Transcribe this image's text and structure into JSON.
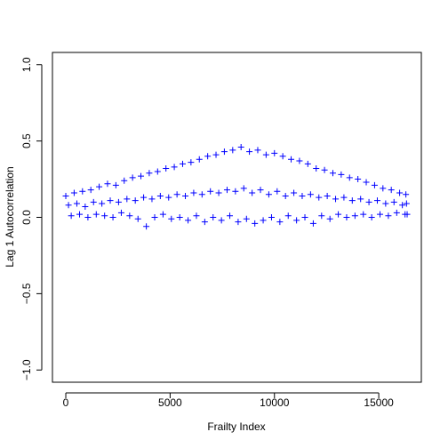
{
  "chart_data": {
    "type": "scatter",
    "xlabel": "Frailty Index",
    "ylabel": "Lag 1 Autocorrelation",
    "color": "#0000ff",
    "xlim": [
      -640,
      17040
    ],
    "ylim": [
      -1.08,
      1.08
    ],
    "xticks": [
      0,
      5000,
      10000,
      15000
    ],
    "yticks": [
      {
        "value": -1.0,
        "label": "−1.0"
      },
      {
        "value": -0.5,
        "label": "−0.5"
      },
      {
        "value": 0.0,
        "label": "0.0"
      },
      0.5,
      {
        "value": 1.0,
        "label": "1.0"
      }
    ],
    "x": [
      0,
      130,
      260,
      400,
      530,
      660,
      800,
      930,
      1060,
      1200,
      1330,
      1460,
      1600,
      1730,
      1860,
      2000,
      2130,
      2260,
      2400,
      2530,
      2660,
      2800,
      2930,
      3060,
      3200,
      3330,
      3460,
      3600,
      3730,
      3860,
      4000,
      4130,
      4260,
      4400,
      4530,
      4660,
      4800,
      4930,
      5060,
      5200,
      5330,
      5460,
      5600,
      5730,
      5860,
      6000,
      6130,
      6260,
      6400,
      6530,
      6660,
      6800,
      6930,
      7060,
      7200,
      7330,
      7460,
      7600,
      7730,
      7860,
      8000,
      8130,
      8260,
      8400,
      8530,
      8660,
      8800,
      8930,
      9060,
      9200,
      9330,
      9460,
      9600,
      9730,
      9860,
      10000,
      10130,
      10260,
      10400,
      10530,
      10660,
      10800,
      10930,
      11060,
      11200,
      11330,
      11460,
      11600,
      11730,
      11860,
      12000,
      12130,
      12260,
      12400,
      12530,
      12660,
      12800,
      12930,
      13060,
      13200,
      13330,
      13460,
      13600,
      13730,
      13860,
      14000,
      14130,
      14260,
      14400,
      14530,
      14660,
      14800,
      14930,
      15060,
      15200,
      15330,
      15460,
      15600,
      15730,
      15860,
      16000,
      16130,
      16260,
      16300,
      16330,
      16360
    ],
    "values": [
      0.14,
      0.08,
      0.01,
      0.16,
      0.09,
      0.02,
      0.17,
      0.07,
      0.0,
      0.18,
      0.1,
      0.02,
      0.2,
      0.09,
      0.01,
      0.22,
      0.11,
      0.0,
      0.21,
      0.1,
      0.03,
      0.24,
      0.12,
      0.01,
      0.26,
      0.11,
      -0.01,
      0.27,
      0.13,
      -0.06,
      0.29,
      0.12,
      0.0,
      0.3,
      0.14,
      0.02,
      0.32,
      0.13,
      -0.01,
      0.33,
      0.15,
      0.0,
      0.35,
      0.14,
      -0.02,
      0.36,
      0.16,
      0.01,
      0.38,
      0.15,
      -0.03,
      0.4,
      0.17,
      0.0,
      0.41,
      0.16,
      -0.02,
      0.43,
      0.18,
      0.01,
      0.44,
      0.17,
      -0.03,
      0.46,
      0.19,
      -0.01,
      0.43,
      0.16,
      -0.04,
      0.44,
      0.18,
      -0.02,
      0.41,
      0.15,
      0.0,
      0.42,
      0.17,
      -0.03,
      0.4,
      0.14,
      0.01,
      0.38,
      0.16,
      -0.02,
      0.37,
      0.14,
      0.0,
      0.35,
      0.15,
      -0.04,
      0.32,
      0.13,
      0.01,
      0.31,
      0.14,
      -0.01,
      0.29,
      0.12,
      0.02,
      0.28,
      0.13,
      0.0,
      0.26,
      0.11,
      0.01,
      0.25,
      0.12,
      0.02,
      0.23,
      0.1,
      0.0,
      0.21,
      0.11,
      0.02,
      0.19,
      0.09,
      0.01,
      0.18,
      0.1,
      0.03,
      0.16,
      0.08,
      0.02,
      0.15,
      0.09,
      0.02
    ]
  }
}
